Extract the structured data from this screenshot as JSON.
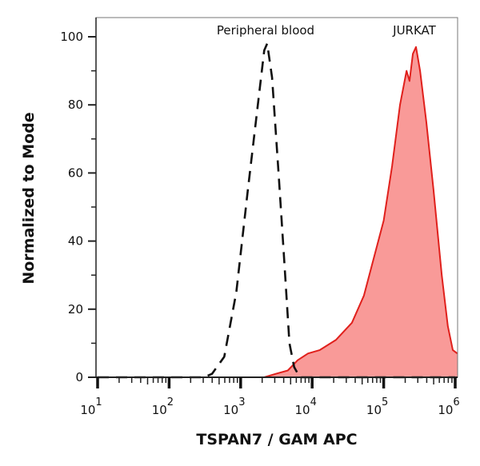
{
  "chart_data": {
    "type": "area",
    "title": "",
    "xlabel": "TSPAN7 / GAM APC",
    "ylabel": "Normalized to Mode",
    "xscale": "log",
    "xlim": [
      10,
      1000000
    ],
    "ylim": [
      0,
      100
    ],
    "grid": false,
    "xticks": [
      {
        "value": 10,
        "base": "10",
        "exp": "1"
      },
      {
        "value": 100,
        "base": "10",
        "exp": "2"
      },
      {
        "value": 1000,
        "base": "10",
        "exp": "3"
      },
      {
        "value": 10000,
        "base": "10",
        "exp": "4"
      },
      {
        "value": 100000,
        "base": "10",
        "exp": "5"
      },
      {
        "value": 1000000,
        "base": "10",
        "exp": "6"
      }
    ],
    "yticks": [
      {
        "value": 0,
        "label": "0"
      },
      {
        "value": 20,
        "label": "20"
      },
      {
        "value": 40,
        "label": "40"
      },
      {
        "value": 60,
        "label": "60"
      },
      {
        "value": 80,
        "label": "80"
      },
      {
        "value": 100,
        "label": "100"
      }
    ],
    "series": [
      {
        "name": "Peripheral blood",
        "style": "dashed",
        "color": "#111111",
        "fill": "none",
        "x": [
          10,
          309,
          398,
          590,
          870,
          1260,
          1740,
          2140,
          2350,
          2750,
          3390,
          4050,
          4810,
          5600,
          6700,
          1000000
        ],
        "y": [
          0,
          0,
          1,
          6,
          25,
          55,
          80,
          96,
          98,
          88,
          60,
          35,
          10,
          3,
          0,
          0
        ]
      },
      {
        "name": "JURKAT",
        "style": "solid",
        "color": "#e0201c",
        "fill": "#f99a98",
        "x": [
          10,
          2140,
          3100,
          4570,
          6260,
          8760,
          12800,
          21600,
          36000,
          52900,
          68700,
          100000,
          131000,
          169000,
          209000,
          230000,
          256000,
          283000,
          323000,
          395000,
          497000,
          648000,
          790000,
          925000,
          1070000
        ],
        "y": [
          0,
          0,
          1,
          2,
          5,
          7,
          8,
          11,
          16,
          24,
          33,
          46,
          62,
          80,
          90,
          87,
          95,
          97,
          90,
          75,
          55,
          30,
          15,
          8,
          7
        ]
      }
    ]
  }
}
